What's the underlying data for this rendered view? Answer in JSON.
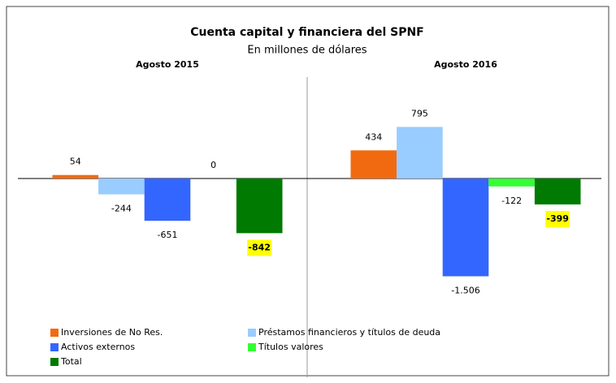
{
  "chart_data": {
    "type": "bar",
    "title": "Cuenta capital y financiera del SPNF",
    "subtitle": "En millones de dólares",
    "categories": [
      "Agosto 2015",
      "Agosto 2016"
    ],
    "series": [
      {
        "name": "Inversiones de No Res.",
        "color": "#f26a10",
        "values": [
          54,
          434
        ]
      },
      {
        "name": "Préstamos financieros y títulos de deuda",
        "color": "#99ccff",
        "values": [
          -244,
          795
        ]
      },
      {
        "name": "Activos externos",
        "color": "#3366ff",
        "values": [
          -651,
          -1506
        ],
        "value_labels": [
          "-651",
          "-1.506"
        ]
      },
      {
        "name": "Títulos valores",
        "color": "#33ff33",
        "values": [
          0,
          -122
        ]
      },
      {
        "name": "Total",
        "color": "#007a00",
        "values": [
          -842,
          -399
        ]
      }
    ],
    "ylim": [
      -1900,
      1500
    ],
    "legend": "bottom-left"
  }
}
